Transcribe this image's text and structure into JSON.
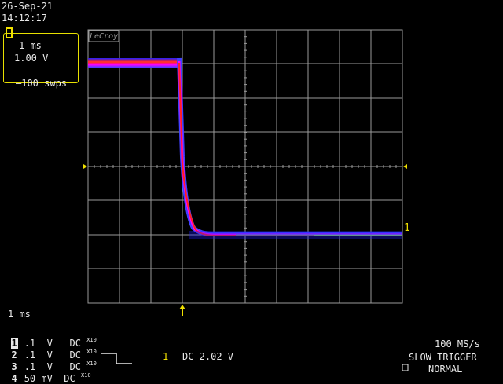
{
  "status": {
    "date": "26-Sep-21",
    "time": "14:12:17"
  },
  "trace_box": {
    "timebase": "1 ms",
    "volts": "1.00 V",
    "sweeps": "—100 swps"
  },
  "brand": "LeCroy",
  "timebase_readout": "1 ms",
  "channels": [
    {
      "num": "1",
      "scale": ".1",
      "unit": "V",
      "coupling": "DC",
      "probe": "X10",
      "selected": true
    },
    {
      "num": "2",
      "scale": ".1",
      "unit": "V",
      "coupling": "DC",
      "probe": "X10",
      "selected": false
    },
    {
      "num": "3",
      "scale": ".1",
      "unit": "V",
      "coupling": "DC",
      "probe": "X10",
      "selected": false
    },
    {
      "num": "4",
      "scale": "50",
      "unit": "mV",
      "coupling": "DC",
      "probe": "X10",
      "selected": false
    }
  ],
  "trigger": {
    "source": "1",
    "level": "DC 2.02 V",
    "sample_rate": "100 MS/s",
    "mode": "SLOW TRIGGER",
    "state": "NORMAL"
  },
  "trace_label": "1",
  "colors": {
    "trace": "#f0e000",
    "grid": "#9a9a9a",
    "text": "#e8e8e8"
  }
}
